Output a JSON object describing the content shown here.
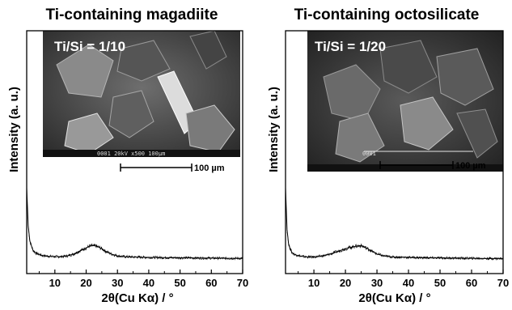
{
  "chart_data": [
    {
      "type": "line",
      "title": "Ti-containing magadiite",
      "xlabel": "2θ(Cu Kα) / °",
      "ylabel": "Intensity (a. u.)",
      "xlim": [
        1,
        70
      ],
      "x_ticks": [
        10,
        20,
        30,
        40,
        50,
        60,
        70
      ],
      "y_ticks_shown": false,
      "x": [
        1,
        1.5,
        2,
        3,
        4,
        6,
        8,
        10,
        12,
        14,
        16,
        18,
        20,
        21,
        22,
        23,
        24,
        25,
        26,
        28,
        30,
        32,
        35,
        40,
        45,
        50,
        55,
        60,
        65,
        70
      ],
      "y": [
        100,
        50,
        30,
        18,
        14,
        11,
        10,
        9.5,
        9.5,
        10.5,
        13,
        17,
        21,
        23,
        24,
        23.5,
        22,
        20,
        17,
        13,
        10.5,
        9.5,
        9,
        8.5,
        8.2,
        8,
        7.8,
        7.5,
        7.3,
        7.2
      ],
      "inset": {
        "label": "Ti/Si = 1/10",
        "scale_bar": "100 µm",
        "sem_footer": "0001  20kV  x500  100µm"
      }
    },
    {
      "type": "line",
      "title": "Ti-containing octosilicate",
      "xlabel": "2θ(Cu Kα) / °",
      "ylabel": "Intensity (a. u.)",
      "xlim": [
        1,
        70
      ],
      "x_ticks": [
        10,
        20,
        30,
        40,
        50,
        60,
        70
      ],
      "y_ticks_shown": false,
      "x": [
        1,
        1.5,
        2,
        3,
        4,
        6,
        8,
        10,
        12,
        14,
        16,
        18,
        20,
        22,
        23,
        24,
        25,
        26,
        27,
        28,
        30,
        32,
        35,
        40,
        45,
        50,
        55,
        60,
        65,
        70
      ],
      "y": [
        100,
        45,
        25,
        15,
        12,
        10,
        9,
        9,
        10,
        11.5,
        14,
        17,
        20,
        22,
        23,
        23.5,
        24,
        22,
        20,
        17.5,
        13,
        10.5,
        9,
        8.5,
        8,
        7.8,
        7.5,
        7.3,
        7,
        7
      ],
      "inset": {
        "label": "Ti/Si = 1/20",
        "scale_bar": "100 µm",
        "sem_footer": "0001"
      }
    }
  ]
}
